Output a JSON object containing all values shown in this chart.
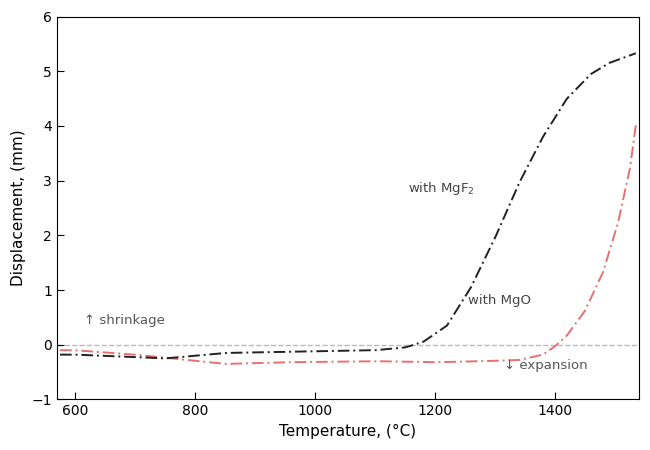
{
  "title": "",
  "xlabel": "Temperature, (°C)",
  "ylabel": "Displacement, (mm)",
  "xlim": [
    570,
    1540
  ],
  "ylim": [
    -1,
    6
  ],
  "yticks": [
    -1,
    0,
    1,
    2,
    3,
    4,
    5,
    6
  ],
  "xticks": [
    600,
    800,
    1000,
    1200,
    1400
  ],
  "background_color": "#ffffff",
  "label_mgf2": "with MgF$_2$",
  "label_mgo": "with MgO",
  "annotation_shrinkage": "↑ shrinkage",
  "annotation_expansion": "↓ expansion",
  "mgf2_color": "#222222",
  "mgo_color": "#cc3333",
  "mgo_color_light": "#e87070",
  "dashed_line_color": "#bbbbbb",
  "shrinkage_color": "#555555",
  "expansion_color": "#555555",
  "label_color": "#444444"
}
